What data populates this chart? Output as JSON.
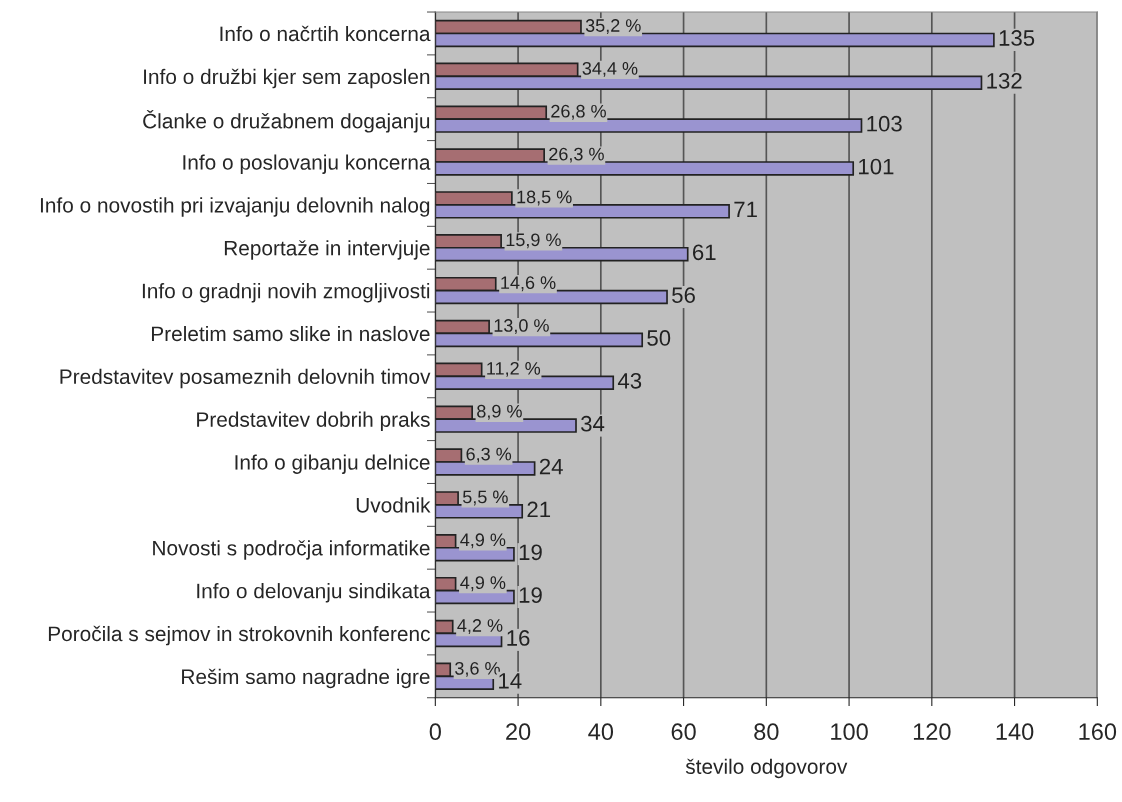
{
  "chart_data": {
    "type": "bar",
    "orientation": "horizontal",
    "xlabel": "število odgovorov",
    "categories": [
      "Info o načrtih koncerna",
      "Info o družbi kjer sem zaposlen",
      "Članke o družabnem dogajanju",
      "Info o poslovanju koncerna",
      "Info o novostih pri izvajanju delovnih nalog",
      "Reportaže in intervjuje",
      "Info o gradnji novih zmogljivosti",
      "Preletim samo slike in naslove",
      "Predstavitev posameznih delovnih timov",
      "Predstavitev dobrih praks",
      "Info o gibanju delnice",
      "Uvodnik",
      "Novosti s področja informatike",
      "Info o delovanju sindikata",
      "Poročila s sejmov in strokovnih konferenc",
      "Rešim samo nagradne igre"
    ],
    "series": [
      {
        "color": "#a66e72",
        "values": [
          35.2,
          34.4,
          26.8,
          26.3,
          18.5,
          15.9,
          14.6,
          13.0,
          11.2,
          8.9,
          6.3,
          5.5,
          4.9,
          4.9,
          4.2,
          3.6
        ],
        "value_labels": [
          "35,2 %",
          "34,4 %",
          "26,8 %",
          "26,3 %",
          "18,5 %",
          "15,9 %",
          "14,6 %",
          "13,0 %",
          "11,2 %",
          "8,9 %",
          "6,3 %",
          "5,5 %",
          "4,9 %",
          "4,9 %",
          "4,2 %",
          "3,6 %"
        ]
      },
      {
        "color": "#9a94d0",
        "values": [
          135,
          132,
          103,
          101,
          71,
          61,
          56,
          50,
          43,
          34,
          24,
          21,
          19,
          19,
          16,
          14
        ],
        "value_labels": [
          "135",
          "132",
          "103",
          "101",
          "71",
          "61",
          "56",
          "50",
          "43",
          "34",
          "24",
          "21",
          "19",
          "19",
          "16",
          "14"
        ]
      }
    ],
    "xlim": [
      0,
      160
    ],
    "xticks": [
      0,
      20,
      40,
      60,
      80,
      100,
      120,
      140,
      160
    ],
    "grid": "x",
    "legend": false
  }
}
